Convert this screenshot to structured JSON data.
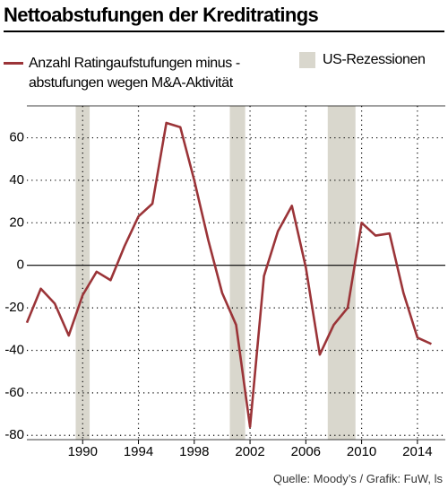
{
  "chart_data": {
    "type": "line",
    "title": "Nettoabstufungen der Kreditratings",
    "x": [
      1986,
      1987,
      1988,
      1989,
      1990,
      1991,
      1992,
      1993,
      1994,
      1995,
      1996,
      1997,
      1998,
      1999,
      2000,
      2001,
      2002,
      2003,
      2004,
      2005,
      2006,
      2007,
      2008,
      2009,
      2010,
      2011,
      2012,
      2013,
      2014,
      2015
    ],
    "series": [
      {
        "name": "Anzahl Ratingaufstufungen minus -abstufungen wegen M&A-Aktivität",
        "color": "#9b3438",
        "values": [
          -27,
          -11,
          -18,
          -33,
          -14,
          -3,
          -7,
          9,
          23,
          29,
          67,
          65,
          40,
          12,
          -13,
          -28,
          -76,
          -5,
          16,
          28,
          -1,
          -42,
          -28,
          -20,
          20,
          14,
          15,
          -13,
          -34,
          -37
        ]
      }
    ],
    "recession_label": "US-Rezessionen",
    "recession_color": "#d9d7cd",
    "recessions": [
      [
        1989.5,
        1990.5
      ],
      [
        2000.55,
        2001.65
      ],
      [
        2007.57,
        2009.56
      ]
    ],
    "xlim": [
      1986,
      2016
    ],
    "xticks": [
      1990,
      1994,
      1998,
      2002,
      2006,
      2010,
      2014
    ],
    "ylim": [
      -82,
      75
    ],
    "yticks": [
      -80,
      -60,
      -40,
      -20,
      0,
      20,
      40,
      60
    ],
    "grid": true,
    "source": "Quelle: Moody’s / Grafik: FuW, ls"
  }
}
